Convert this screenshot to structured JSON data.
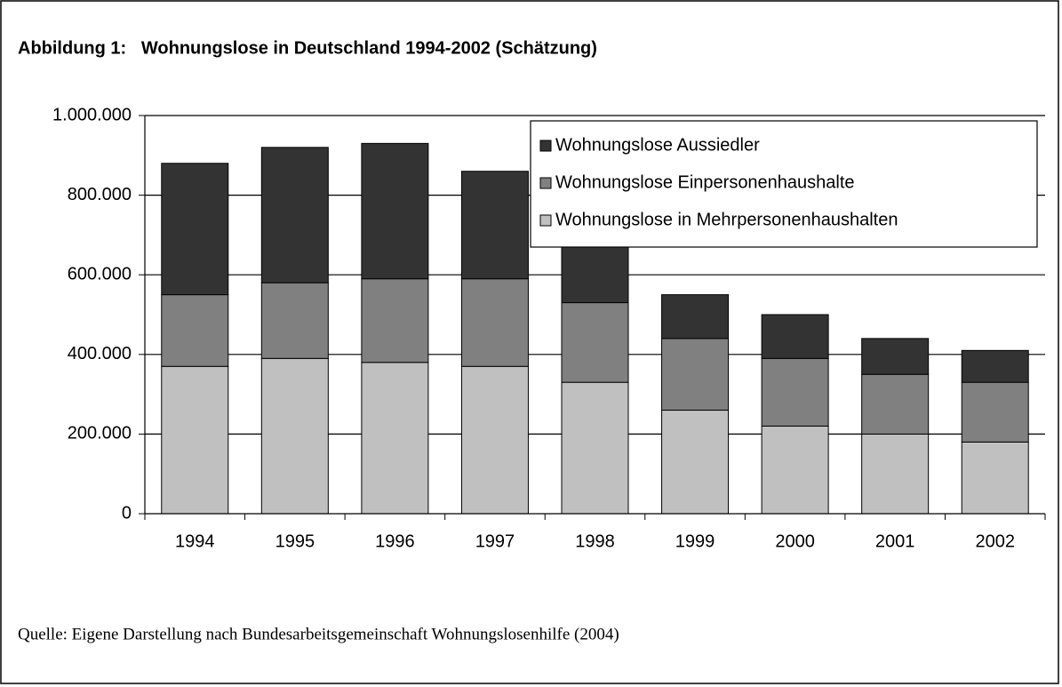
{
  "chart_data": {
    "type": "stacked_bar",
    "title": "Abbildung 1:   Wohnungslose in Deutschland 1994-2002 (Schätzung)",
    "source": "Quelle: Eigene Darstellung nach Bundesarbeitsgemeinschaft Wohnungslosenhilfe (2004)",
    "categories": [
      "1994",
      "1995",
      "1996",
      "1997",
      "1998",
      "1999",
      "2000",
      "2001",
      "2002"
    ],
    "series": [
      {
        "name": "Wohnungslose in Mehrpersonenhaushalten",
        "color": "#c0c0c0",
        "values": [
          370000,
          390000,
          380000,
          370000,
          330000,
          260000,
          220000,
          200000,
          180000
        ]
      },
      {
        "name": "Wohnungslose Einpersonenhaushalte",
        "color": "#808080",
        "values": [
          180000,
          190000,
          210000,
          220000,
          200000,
          180000,
          170000,
          150000,
          150000
        ]
      },
      {
        "name": "Wohnungslose Aussiedler",
        "color": "#333333",
        "values": [
          330000,
          340000,
          340000,
          270000,
          150000,
          110000,
          110000,
          90000,
          80000
        ]
      }
    ],
    "ylim": [
      0,
      1000000
    ],
    "yticks": [
      0,
      {
        "value": 200000,
        "label": "200.000"
      },
      {
        "value": 400000,
        "label": "400.000"
      },
      {
        "value": 600000,
        "label": "600.000"
      },
      {
        "value": 800000,
        "label": "800.000"
      },
      {
        "value": 1000000,
        "label": "1.000.000"
      }
    ],
    "grid": true,
    "legend": "top-right"
  }
}
